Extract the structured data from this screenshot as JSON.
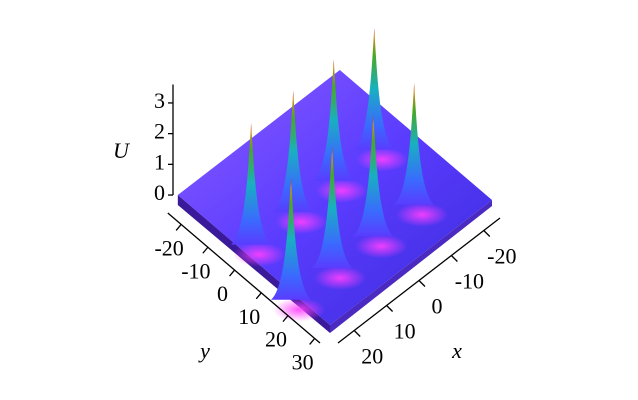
{
  "chart_data": {
    "type": "surface",
    "z_label": "U",
    "x_label": "x",
    "y_label": "y",
    "xlim": [
      -25,
      25
    ],
    "ylim": [
      -25,
      32
    ],
    "zlim": [
      0,
      3.6
    ],
    "xticks": [
      -20,
      -10,
      0,
      10,
      20
    ],
    "yticks": [
      -20,
      -10,
      0,
      10,
      20,
      30
    ],
    "zticks": [
      0,
      1,
      2,
      3
    ],
    "peaks": {
      "x": [
        21,
        8,
        -4.5,
        -17,
        25,
        12.3,
        -0.4,
        -13
      ],
      "y": [
        -2.4,
        -2.4,
        -2.4,
        -2.4,
        17.4,
        17.4,
        17.4,
        17.4
      ],
      "z": [
        3.7,
        3.7,
        3.7,
        3.7,
        3.7,
        3.7,
        3.7,
        3.7
      ]
    }
  }
}
